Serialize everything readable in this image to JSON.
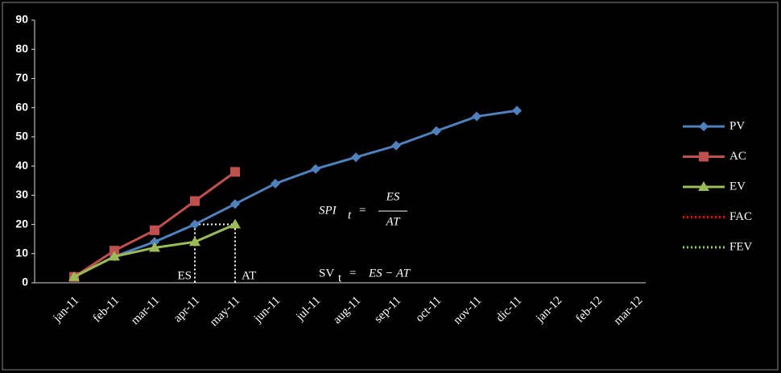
{
  "chart_data": {
    "type": "line",
    "categories": [
      "jan-11",
      "feb-11",
      "mar-11",
      "apr-11",
      "may-11",
      "jun-11",
      "jul-11",
      "aug-11",
      "sep-11",
      "oct-11",
      "nov-11",
      "dic-11",
      "jan-12",
      "feb-12",
      "mar-12"
    ],
    "series": [
      {
        "name": "PV",
        "color": "#4f81bd",
        "marker": "diamond",
        "values": [
          2,
          9,
          14,
          20,
          27,
          34,
          39,
          43,
          47,
          52,
          57,
          59,
          null,
          null,
          null
        ]
      },
      {
        "name": "AC",
        "color": "#c0504d",
        "marker": "square",
        "values": [
          2,
          11,
          18,
          28,
          38,
          null,
          null,
          null,
          null,
          null,
          null,
          null,
          null,
          null,
          null
        ]
      },
      {
        "name": "EV",
        "color": "#9bbb59",
        "marker": "triangle",
        "values": [
          2,
          9,
          12,
          14,
          20,
          null,
          null,
          null,
          null,
          null,
          null,
          null,
          null,
          null,
          null
        ]
      },
      {
        "name": "FAC",
        "color": "#ff0000",
        "dash": true,
        "values": [
          null,
          null,
          null,
          null,
          null,
          null,
          null,
          null,
          null,
          null,
          null,
          null,
          null,
          null,
          null
        ]
      },
      {
        "name": "FEV",
        "color": "#92d050",
        "dash": true,
        "values": [
          null,
          null,
          null,
          null,
          null,
          null,
          null,
          null,
          null,
          null,
          null,
          null,
          null,
          null,
          null
        ]
      }
    ],
    "ylim": [
      0,
      90
    ],
    "yticks": [
      0,
      10,
      20,
      30,
      40,
      50,
      60,
      70,
      80,
      90
    ],
    "grid": false,
    "legend": "right",
    "annotations": {
      "es": "ES",
      "at": "AT",
      "spi": {
        "lhs": "SPI",
        "sub": "t",
        "eq": "=",
        "num": "ES",
        "den": "AT"
      },
      "sv": {
        "lhs": "SV",
        "sub": "t",
        "eq": "=",
        "rhs": "ES − AT"
      }
    }
  }
}
